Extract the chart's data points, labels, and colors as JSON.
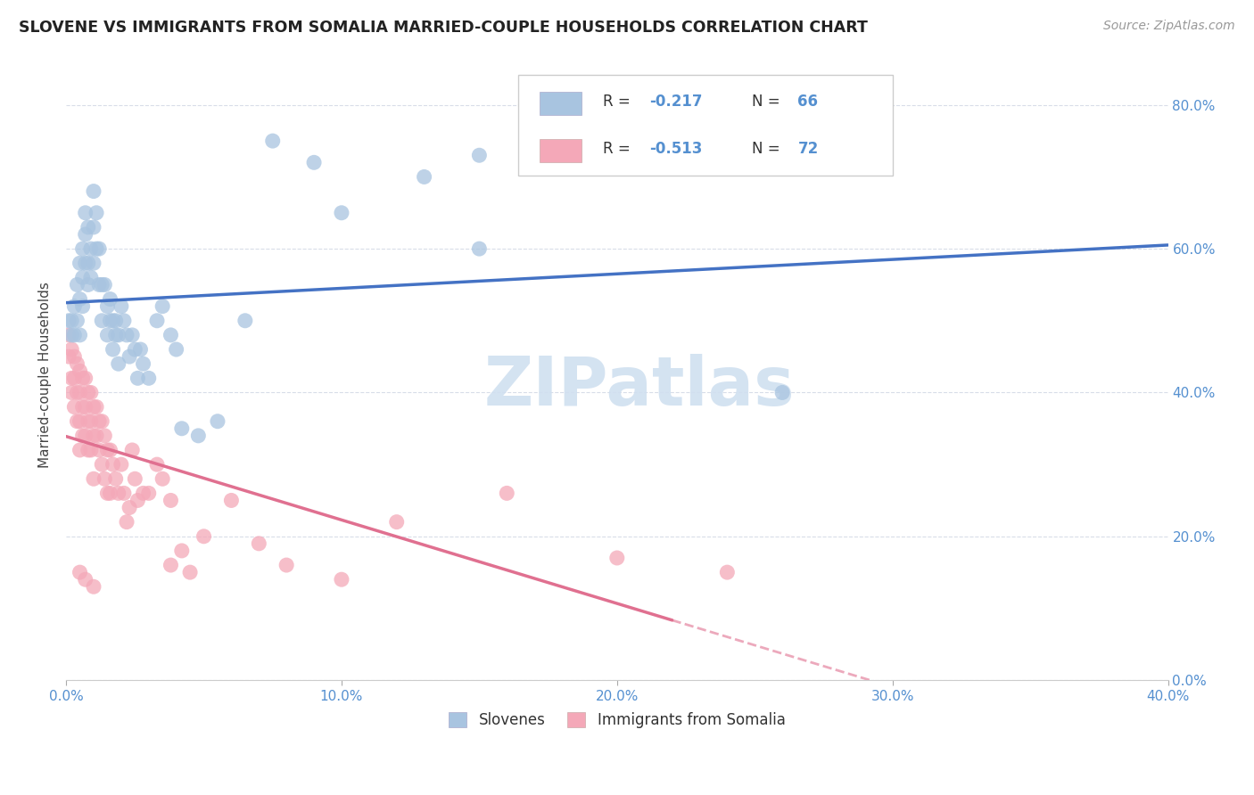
{
  "title": "SLOVENE VS IMMIGRANTS FROM SOMALIA MARRIED-COUPLE HOUSEHOLDS CORRELATION CHART",
  "source": "Source: ZipAtlas.com",
  "ylabel": "Married-couple Households",
  "blue_color": "#a8c4e0",
  "pink_color": "#f4a8b8",
  "blue_line_color": "#4472c4",
  "pink_line_color": "#e07090",
  "watermark": "ZIPatlas",
  "watermark_color": "#d0e0f0",
  "blue_scatter": [
    [
      0.001,
      0.5
    ],
    [
      0.002,
      0.5
    ],
    [
      0.002,
      0.48
    ],
    [
      0.003,
      0.52
    ],
    [
      0.003,
      0.48
    ],
    [
      0.004,
      0.55
    ],
    [
      0.004,
      0.5
    ],
    [
      0.005,
      0.58
    ],
    [
      0.005,
      0.53
    ],
    [
      0.005,
      0.48
    ],
    [
      0.006,
      0.6
    ],
    [
      0.006,
      0.56
    ],
    [
      0.006,
      0.52
    ],
    [
      0.007,
      0.65
    ],
    [
      0.007,
      0.62
    ],
    [
      0.007,
      0.58
    ],
    [
      0.008,
      0.63
    ],
    [
      0.008,
      0.58
    ],
    [
      0.008,
      0.55
    ],
    [
      0.009,
      0.6
    ],
    [
      0.009,
      0.56
    ],
    [
      0.01,
      0.68
    ],
    [
      0.01,
      0.63
    ],
    [
      0.01,
      0.58
    ],
    [
      0.011,
      0.65
    ],
    [
      0.011,
      0.6
    ],
    [
      0.012,
      0.6
    ],
    [
      0.012,
      0.55
    ],
    [
      0.013,
      0.55
    ],
    [
      0.013,
      0.5
    ],
    [
      0.014,
      0.55
    ],
    [
      0.015,
      0.52
    ],
    [
      0.015,
      0.48
    ],
    [
      0.016,
      0.53
    ],
    [
      0.016,
      0.5
    ],
    [
      0.017,
      0.5
    ],
    [
      0.017,
      0.46
    ],
    [
      0.018,
      0.5
    ],
    [
      0.018,
      0.48
    ],
    [
      0.019,
      0.48
    ],
    [
      0.019,
      0.44
    ],
    [
      0.02,
      0.52
    ],
    [
      0.021,
      0.5
    ],
    [
      0.022,
      0.48
    ],
    [
      0.023,
      0.45
    ],
    [
      0.024,
      0.48
    ],
    [
      0.025,
      0.46
    ],
    [
      0.026,
      0.42
    ],
    [
      0.027,
      0.46
    ],
    [
      0.028,
      0.44
    ],
    [
      0.03,
      0.42
    ],
    [
      0.033,
      0.5
    ],
    [
      0.035,
      0.52
    ],
    [
      0.038,
      0.48
    ],
    [
      0.04,
      0.46
    ],
    [
      0.042,
      0.35
    ],
    [
      0.048,
      0.34
    ],
    [
      0.055,
      0.36
    ],
    [
      0.065,
      0.5
    ],
    [
      0.075,
      0.75
    ],
    [
      0.09,
      0.72
    ],
    [
      0.1,
      0.65
    ],
    [
      0.13,
      0.7
    ],
    [
      0.15,
      0.73
    ],
    [
      0.26,
      0.4
    ],
    [
      0.15,
      0.6
    ]
  ],
  "pink_scatter": [
    [
      0.001,
      0.48
    ],
    [
      0.001,
      0.45
    ],
    [
      0.002,
      0.46
    ],
    [
      0.002,
      0.42
    ],
    [
      0.002,
      0.4
    ],
    [
      0.003,
      0.45
    ],
    [
      0.003,
      0.42
    ],
    [
      0.003,
      0.38
    ],
    [
      0.004,
      0.44
    ],
    [
      0.004,
      0.4
    ],
    [
      0.004,
      0.36
    ],
    [
      0.005,
      0.43
    ],
    [
      0.005,
      0.4
    ],
    [
      0.005,
      0.36
    ],
    [
      0.005,
      0.32
    ],
    [
      0.006,
      0.42
    ],
    [
      0.006,
      0.38
    ],
    [
      0.006,
      0.34
    ],
    [
      0.007,
      0.42
    ],
    [
      0.007,
      0.38
    ],
    [
      0.007,
      0.34
    ],
    [
      0.008,
      0.4
    ],
    [
      0.008,
      0.36
    ],
    [
      0.008,
      0.32
    ],
    [
      0.009,
      0.4
    ],
    [
      0.009,
      0.36
    ],
    [
      0.009,
      0.32
    ],
    [
      0.01,
      0.38
    ],
    [
      0.01,
      0.34
    ],
    [
      0.01,
      0.28
    ],
    [
      0.011,
      0.38
    ],
    [
      0.011,
      0.34
    ],
    [
      0.012,
      0.36
    ],
    [
      0.012,
      0.32
    ],
    [
      0.013,
      0.36
    ],
    [
      0.013,
      0.3
    ],
    [
      0.014,
      0.34
    ],
    [
      0.014,
      0.28
    ],
    [
      0.015,
      0.32
    ],
    [
      0.015,
      0.26
    ],
    [
      0.016,
      0.32
    ],
    [
      0.016,
      0.26
    ],
    [
      0.017,
      0.3
    ],
    [
      0.018,
      0.28
    ],
    [
      0.019,
      0.26
    ],
    [
      0.02,
      0.3
    ],
    [
      0.021,
      0.26
    ],
    [
      0.022,
      0.22
    ],
    [
      0.023,
      0.24
    ],
    [
      0.024,
      0.32
    ],
    [
      0.025,
      0.28
    ],
    [
      0.026,
      0.25
    ],
    [
      0.028,
      0.26
    ],
    [
      0.03,
      0.26
    ],
    [
      0.033,
      0.3
    ],
    [
      0.035,
      0.28
    ],
    [
      0.038,
      0.25
    ],
    [
      0.038,
      0.16
    ],
    [
      0.042,
      0.18
    ],
    [
      0.045,
      0.15
    ],
    [
      0.05,
      0.2
    ],
    [
      0.06,
      0.25
    ],
    [
      0.07,
      0.19
    ],
    [
      0.08,
      0.16
    ],
    [
      0.1,
      0.14
    ],
    [
      0.12,
      0.22
    ],
    [
      0.16,
      0.26
    ],
    [
      0.2,
      0.17
    ],
    [
      0.24,
      0.15
    ],
    [
      0.005,
      0.15
    ],
    [
      0.007,
      0.14
    ],
    [
      0.01,
      0.13
    ]
  ],
  "xlim": [
    0.0,
    0.4
  ],
  "ylim": [
    0.0,
    0.85
  ],
  "xtick_vals": [
    0.0,
    0.1,
    0.2,
    0.3,
    0.4
  ],
  "xtick_labels": [
    "0.0%",
    "10.0%",
    "20.0%",
    "30.0%",
    "40.0%"
  ],
  "ytick_vals": [
    0.0,
    0.2,
    0.4,
    0.6,
    0.8
  ],
  "ytick_labels": [
    "0.0%",
    "20.0%",
    "40.0%",
    "60.0%",
    "80.0%"
  ],
  "tick_color": "#5590d0",
  "grid_color": "#d8dde8",
  "legend_blue_r": "-0.217",
  "legend_blue_n": "66",
  "legend_pink_r": "-0.513",
  "legend_pink_n": "72"
}
